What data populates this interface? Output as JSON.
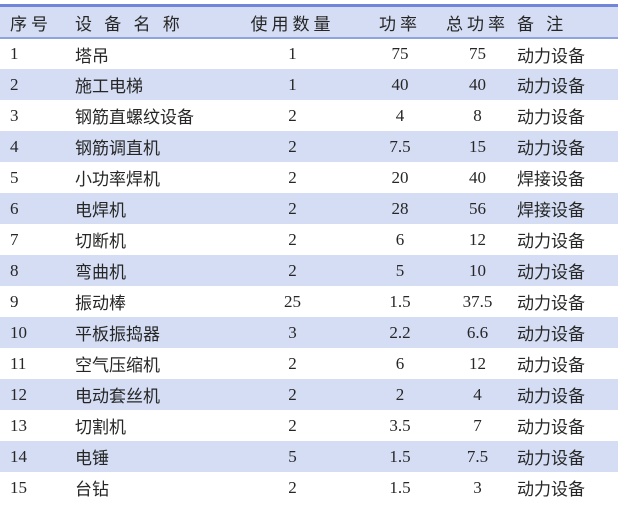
{
  "table": {
    "title": "equipment-power-table",
    "columns": [
      "序号",
      "设 备 名 称",
      "使用数量",
      "功率",
      "总功率",
      "备 注"
    ],
    "rows": [
      [
        "1",
        "塔吊",
        "1",
        "75",
        "75",
        "动力设备"
      ],
      [
        "2",
        "施工电梯",
        "1",
        "40",
        "40",
        "动力设备"
      ],
      [
        "3",
        "钢筋直螺纹设备",
        "2",
        "4",
        "8",
        "动力设备"
      ],
      [
        "4",
        "钢筋调直机",
        "2",
        "7.5",
        "15",
        "动力设备"
      ],
      [
        "5",
        "小功率焊机",
        "2",
        "20",
        "40",
        "焊接设备"
      ],
      [
        "6",
        "电焊机",
        "2",
        "28",
        "56",
        "焊接设备"
      ],
      [
        "7",
        "切断机",
        "2",
        "6",
        "12",
        "动力设备"
      ],
      [
        "8",
        "弯曲机",
        "2",
        "5",
        "10",
        "动力设备"
      ],
      [
        "9",
        "振动棒",
        "25",
        "1.5",
        "37.5",
        "动力设备"
      ],
      [
        "10",
        "平板振捣器",
        "3",
        "2.2",
        "6.6",
        "动力设备"
      ],
      [
        "11",
        "空气压缩机",
        "2",
        "6",
        "12",
        "动力设备"
      ],
      [
        "12",
        "电动套丝机",
        "2",
        "2",
        "4",
        "动力设备"
      ],
      [
        "13",
        "切割机",
        "2",
        "3.5",
        "7",
        "动力设备"
      ],
      [
        "14",
        "电锤",
        "5",
        "1.5",
        "7.5",
        "动力设备"
      ],
      [
        "15",
        "台钻",
        "2",
        "1.5",
        "3",
        "动力设备"
      ]
    ]
  },
  "colors": {
    "stripe_background": "#d4ddf3",
    "header_background": "#d4ddf3",
    "top_border": "#7186d8",
    "header_underline": "#8fa3e0",
    "text": "#262626"
  }
}
